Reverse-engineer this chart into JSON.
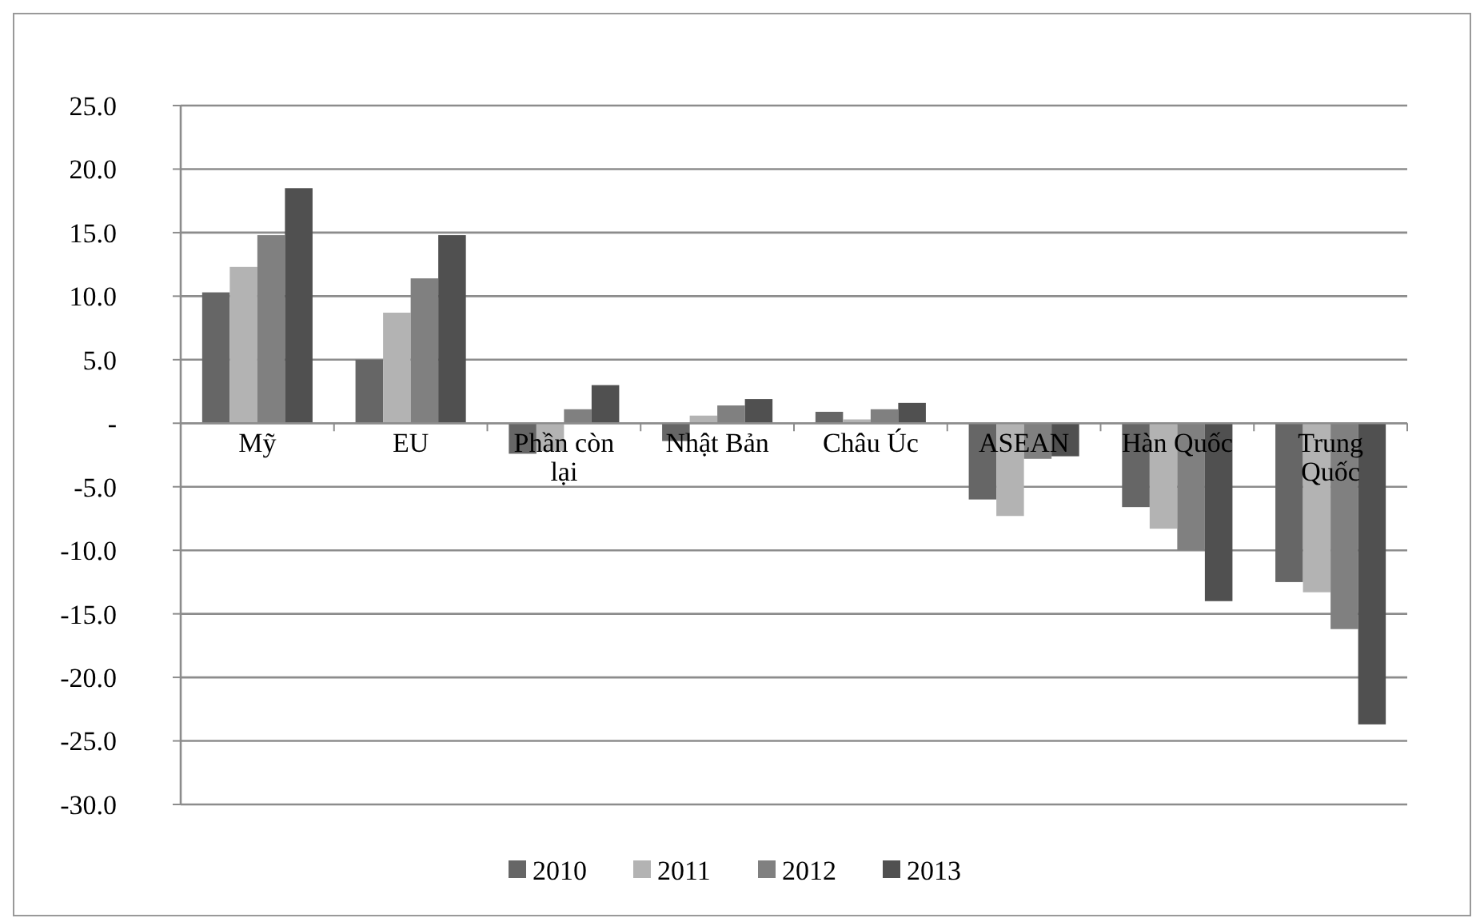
{
  "chart_data": {
    "type": "bar",
    "categories": [
      "Mỹ",
      "EU",
      "Phần còn lại",
      "Nhật Bản",
      "Châu Úc",
      "ASEAN",
      "Hàn Quốc",
      "Trung Quốc"
    ],
    "series": [
      {
        "name": "2010",
        "color": "#666666",
        "values": [
          10.3,
          5.0,
          -2.4,
          -1.4,
          0.9,
          -6.0,
          -6.6,
          -12.5
        ]
      },
      {
        "name": "2011",
        "color": "#b3b3b3",
        "values": [
          12.3,
          8.7,
          -2.2,
          0.6,
          0.3,
          -7.3,
          -8.3,
          -13.3
        ]
      },
      {
        "name": "2012",
        "color": "#808080",
        "values": [
          14.8,
          11.4,
          1.1,
          1.4,
          1.1,
          -2.8,
          -10.0,
          -16.2
        ]
      },
      {
        "name": "2013",
        "color": "#505050",
        "values": [
          18.5,
          14.8,
          3.0,
          1.9,
          1.6,
          -2.6,
          -14.0,
          -23.7
        ]
      }
    ],
    "ylim": [
      -30,
      25
    ],
    "yticks": [
      {
        "value": -30,
        "label": "-30.0"
      },
      {
        "value": -25,
        "label": "-25.0"
      },
      {
        "value": -20,
        "label": "-20.0"
      },
      {
        "value": -15,
        "label": "-15.0"
      },
      {
        "value": -10,
        "label": "-10.0"
      },
      {
        "value": -5,
        "label": "-5.0"
      },
      {
        "value": 0,
        "label": "-"
      },
      {
        "value": 5,
        "label": "5.0"
      },
      {
        "value": 10,
        "label": "10.0"
      },
      {
        "value": 15,
        "label": "15.0"
      },
      {
        "value": 20,
        "label": "20.0"
      },
      {
        "value": 25,
        "label": "25.0"
      }
    ],
    "grid": "y",
    "legend": "bottom"
  }
}
